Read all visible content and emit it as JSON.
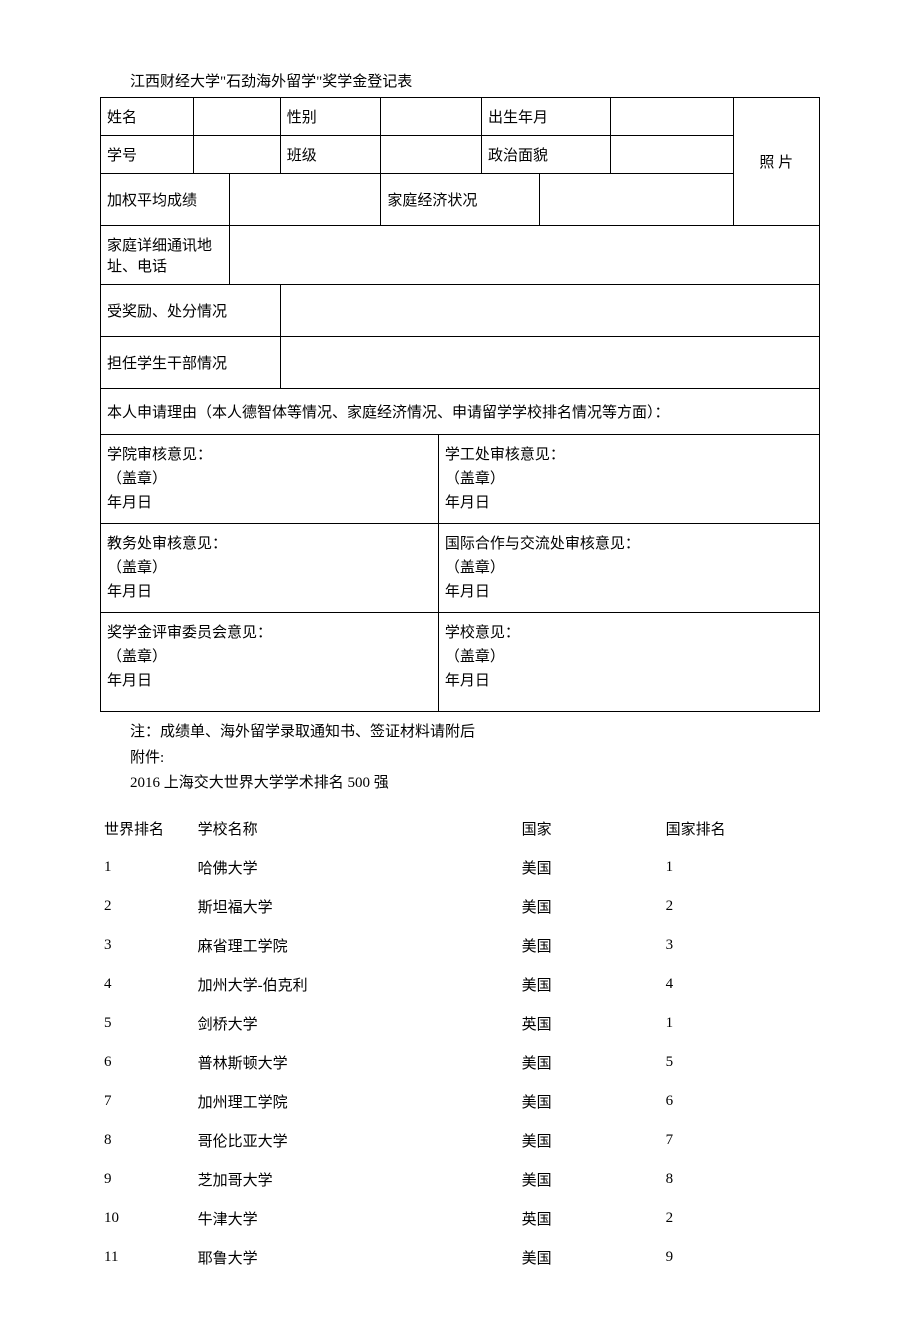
{
  "title": "江西财经大学\"石劲海外留学\"奖学金登记表",
  "form_labels": {
    "name": "姓名",
    "gender": "性别",
    "birth": "出生年月",
    "student_no": "学号",
    "class": "班级",
    "political": "政治面貌",
    "photo": "照 片",
    "weighted_avg": "加权平均成绩",
    "family_econ": "家庭经济状况",
    "family_addr": "家庭详细通讯地址、电话",
    "awards_punish": "受奖励、处分情况",
    "cadre": "担任学生干部情况",
    "apply_reason": "本人申请理由（本人德智体等情况、家庭经济情况、申请留学学校排名情况等方面）："
  },
  "opinion": {
    "college": "学院审核意见：",
    "student_affairs": "学工处审核意见：",
    "academic_affairs": "教务处审核意见：",
    "intl_office": "国际合作与交流处审核意见：",
    "committee": "奖学金评审委员会意见：",
    "school": "学校意见：",
    "seal": "（盖章）",
    "date": "年月日"
  },
  "notes": {
    "note1": "注：成绩单、海外留学录取通知书、签证材料请附后",
    "note2": "附件:",
    "note3": "2016 上海交大世界大学学术排名 500 强"
  },
  "ranking_header": {
    "world_rank": "世界排名",
    "school_name": "学校名称",
    "country": "国家",
    "national_rank": "国家排名"
  },
  "ranking_rows": [
    {
      "world_rank": "1",
      "school": "哈佛大学",
      "country": "美国",
      "nat_rank": "1"
    },
    {
      "world_rank": "2",
      "school": "斯坦福大学",
      "country": "美国",
      "nat_rank": "2"
    },
    {
      "world_rank": "3",
      "school": "麻省理工学院",
      "country": "美国",
      "nat_rank": "3"
    },
    {
      "world_rank": "4",
      "school": "加州大学-伯克利",
      "country": "美国",
      "nat_rank": "4"
    },
    {
      "world_rank": "5",
      "school": "剑桥大学",
      "country": "英国",
      "nat_rank": "1"
    },
    {
      "world_rank": "6",
      "school": "普林斯顿大学",
      "country": "美国",
      "nat_rank": "5"
    },
    {
      "world_rank": "7",
      "school": "加州理工学院",
      "country": "美国",
      "nat_rank": "6"
    },
    {
      "world_rank": "8",
      "school": "哥伦比亚大学",
      "country": "美国",
      "nat_rank": "7"
    },
    {
      "world_rank": "9",
      "school": "芝加哥大学",
      "country": "美国",
      "nat_rank": "8"
    },
    {
      "world_rank": "10",
      "school": "牛津大学",
      "country": "英国",
      "nat_rank": "2"
    },
    {
      "world_rank": "11",
      "school": "耶鲁大学",
      "country": "美国",
      "nat_rank": "9"
    }
  ]
}
